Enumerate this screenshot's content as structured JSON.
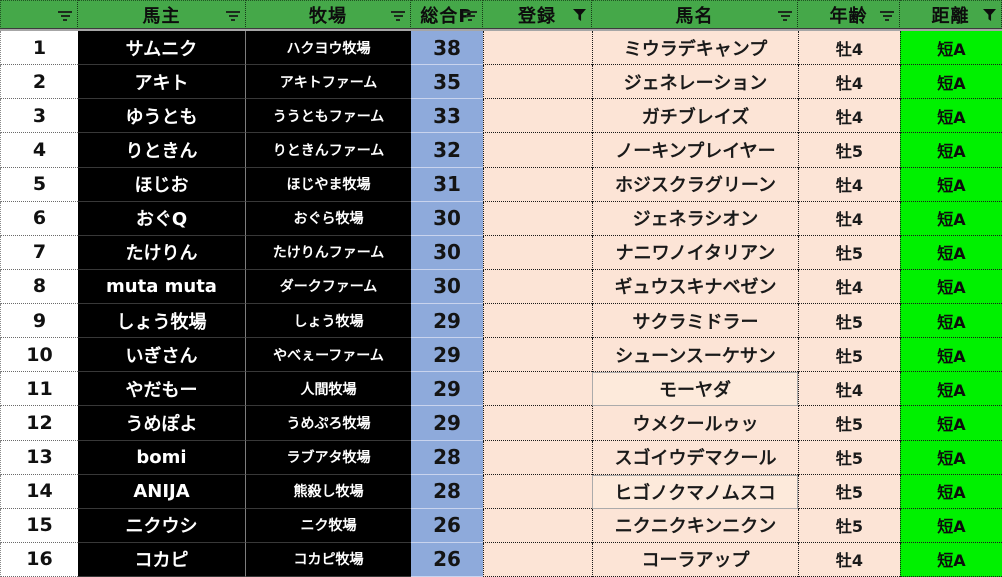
{
  "colors": {
    "header_green": "#45A849",
    "points_blue": "#8EAADB",
    "cell_peach": "#FCE4D6",
    "cell_black": "#000000",
    "distance_green": "#00F100"
  },
  "table": {
    "columns": [
      {
        "key": "no",
        "label": "",
        "icon": "filter-dropdown"
      },
      {
        "key": "owner",
        "label": "馬主",
        "icon": "filter-dropdown"
      },
      {
        "key": "farm",
        "label": "牧場",
        "icon": "filter-dropdown"
      },
      {
        "key": "points",
        "label": "総合P",
        "icon": "filter-dropdown"
      },
      {
        "key": "registration",
        "label": "登録",
        "icon": "filter-funnel"
      },
      {
        "key": "horse",
        "label": "馬名",
        "icon": "filter-dropdown"
      },
      {
        "key": "age",
        "label": "年齢",
        "icon": "filter-dropdown"
      },
      {
        "key": "distance",
        "label": "距離",
        "icon": "filter-funnel"
      }
    ],
    "rows": [
      {
        "no": "1",
        "owner": "サムニク",
        "farm": "ハクヨウ牧場",
        "points": "38",
        "registration": "",
        "horse": "ミウラデキャンプ",
        "age": "牡4",
        "distance": "短A",
        "horse_selected": false
      },
      {
        "no": "2",
        "owner": "アキト",
        "farm": "アキトファーム",
        "points": "35",
        "registration": "",
        "horse": "ジェネレーション",
        "age": "牡4",
        "distance": "短A",
        "horse_selected": false
      },
      {
        "no": "3",
        "owner": "ゆうとも",
        "farm": "ううともファーム",
        "points": "33",
        "registration": "",
        "horse": "ガチブレイズ",
        "age": "牡4",
        "distance": "短A",
        "horse_selected": false
      },
      {
        "no": "4",
        "owner": "りときん",
        "farm": "りときんファーム",
        "points": "32",
        "registration": "",
        "horse": "ノーキンプレイヤー",
        "age": "牡5",
        "distance": "短A",
        "horse_selected": false
      },
      {
        "no": "5",
        "owner": "ほじお",
        "farm": "ほじやま牧場",
        "points": "31",
        "registration": "",
        "horse": "ホジスクラグリーン",
        "age": "牡4",
        "distance": "短A",
        "horse_selected": false
      },
      {
        "no": "6",
        "owner": "おぐQ",
        "farm": "おぐら牧場",
        "points": "30",
        "registration": "",
        "horse": "ジェネラシオン",
        "age": "牡4",
        "distance": "短A",
        "horse_selected": false
      },
      {
        "no": "7",
        "owner": "たけりん",
        "farm": "たけりんファーム",
        "points": "30",
        "registration": "",
        "horse": "ナニワノイタリアン",
        "age": "牡5",
        "distance": "短A",
        "horse_selected": false
      },
      {
        "no": "8",
        "owner": "muta muta",
        "farm": "ダークファーム",
        "points": "30",
        "registration": "",
        "horse": "ギュウスキナベゼン",
        "age": "牡4",
        "distance": "短A",
        "horse_selected": false
      },
      {
        "no": "9",
        "owner": "しょう牧場",
        "farm": "しょう牧場",
        "points": "29",
        "registration": "",
        "horse": "サクラミドラー",
        "age": "牡5",
        "distance": "短A",
        "horse_selected": false
      },
      {
        "no": "10",
        "owner": "いぎさん",
        "farm": "やべぇーファーム",
        "points": "29",
        "registration": "",
        "horse": "シューンスーケサン",
        "age": "牡5",
        "distance": "短A",
        "horse_selected": false
      },
      {
        "no": "11",
        "owner": "やだもー",
        "farm": "人間牧場",
        "points": "29",
        "registration": "",
        "horse": "モーヤダ",
        "age": "牡4",
        "distance": "短A",
        "horse_selected": true
      },
      {
        "no": "12",
        "owner": "うめぽよ",
        "farm": "うめぷろ牧場",
        "points": "29",
        "registration": "",
        "horse": "ウメクールゥッ",
        "age": "牡5",
        "distance": "短A",
        "horse_selected": false
      },
      {
        "no": "13",
        "owner": "bomi",
        "farm": "ラブアタ牧場",
        "points": "28",
        "registration": "",
        "horse": "スゴイウデマクール",
        "age": "牡5",
        "distance": "短A",
        "horse_selected": false
      },
      {
        "no": "14",
        "owner": "ANIJA",
        "farm": "熊殺し牧場",
        "points": "28",
        "registration": "",
        "horse": "ヒゴノクマノムスコ",
        "age": "牡5",
        "distance": "短A",
        "horse_selected": true
      },
      {
        "no": "15",
        "owner": "ニクウシ",
        "farm": "ニク牧場",
        "points": "26",
        "registration": "",
        "horse": "ニクニクキンニクン",
        "age": "牡5",
        "distance": "短A",
        "horse_selected": false
      },
      {
        "no": "16",
        "owner": "コカピ",
        "farm": "コカピ牧場",
        "points": "26",
        "registration": "",
        "horse": "コーラアップ",
        "age": "牡4",
        "distance": "短A",
        "horse_selected": false
      }
    ]
  }
}
